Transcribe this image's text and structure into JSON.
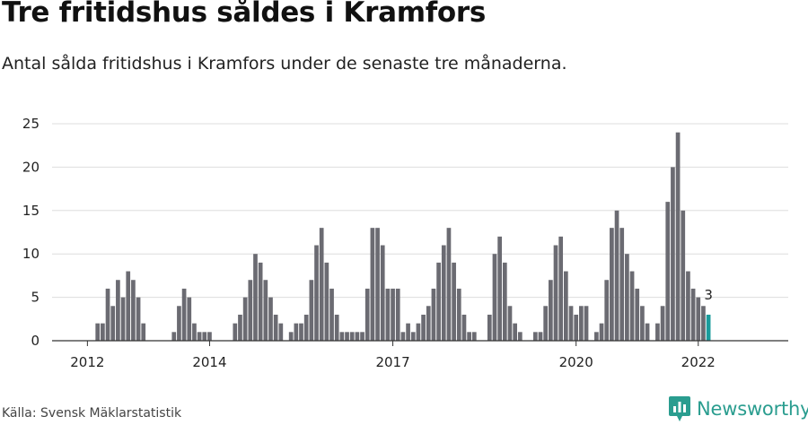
{
  "title": "Tre fritidshus såldes i Kramfors",
  "subtitle": "Antal sålda fritidshus i Kramfors under de senaste tre månaderna.",
  "source": "Källa: Svensk Mäklarstatistik",
  "brand": "Newsworthy",
  "colors": {
    "bar": "#6b6b72",
    "highlight": "#1a9c9c",
    "grid": "#dddddd",
    "axis": "#333333",
    "brand": "#2a9d8f"
  },
  "chart_data": {
    "type": "bar",
    "title": "Tre fritidshus såldes i Kramfors",
    "xlabel": "",
    "ylabel": "",
    "ylim": [
      0,
      25
    ],
    "yticks": [
      "0",
      "5",
      "10",
      "15",
      "20",
      "25"
    ],
    "xticks": [
      {
        "label": "2012",
        "index": 6
      },
      {
        "label": "2014",
        "index": 30
      },
      {
        "label": "2017",
        "index": 66
      },
      {
        "label": "2020",
        "index": 102
      },
      {
        "label": "2022",
        "index": 126
      }
    ],
    "values": [
      0,
      0,
      0,
      0,
      0,
      0,
      0,
      0,
      2,
      2,
      6,
      4,
      7,
      5,
      8,
      7,
      5,
      2,
      0,
      0,
      0,
      0,
      0,
      1,
      4,
      6,
      5,
      2,
      1,
      1,
      1,
      0,
      0,
      0,
      0,
      2,
      3,
      5,
      7,
      10,
      9,
      7,
      5,
      3,
      2,
      0,
      1,
      2,
      2,
      3,
      7,
      11,
      13,
      9,
      6,
      3,
      1,
      1,
      1,
      1,
      1,
      6,
      13,
      13,
      11,
      6,
      6,
      6,
      1,
      2,
      1,
      2,
      3,
      4,
      6,
      9,
      11,
      13,
      9,
      6,
      3,
      1,
      1,
      0,
      0,
      3,
      10,
      12,
      9,
      4,
      2,
      1,
      0,
      0,
      1,
      1,
      4,
      7,
      11,
      12,
      8,
      4,
      3,
      4,
      4,
      0,
      1,
      2,
      7,
      13,
      15,
      13,
      10,
      8,
      6,
      4,
      2,
      0,
      2,
      4,
      16,
      20,
      24,
      15,
      8,
      6,
      5,
      4,
      3
    ],
    "highlight_index": 128,
    "annotation": {
      "index": 128,
      "text": "3"
    }
  }
}
